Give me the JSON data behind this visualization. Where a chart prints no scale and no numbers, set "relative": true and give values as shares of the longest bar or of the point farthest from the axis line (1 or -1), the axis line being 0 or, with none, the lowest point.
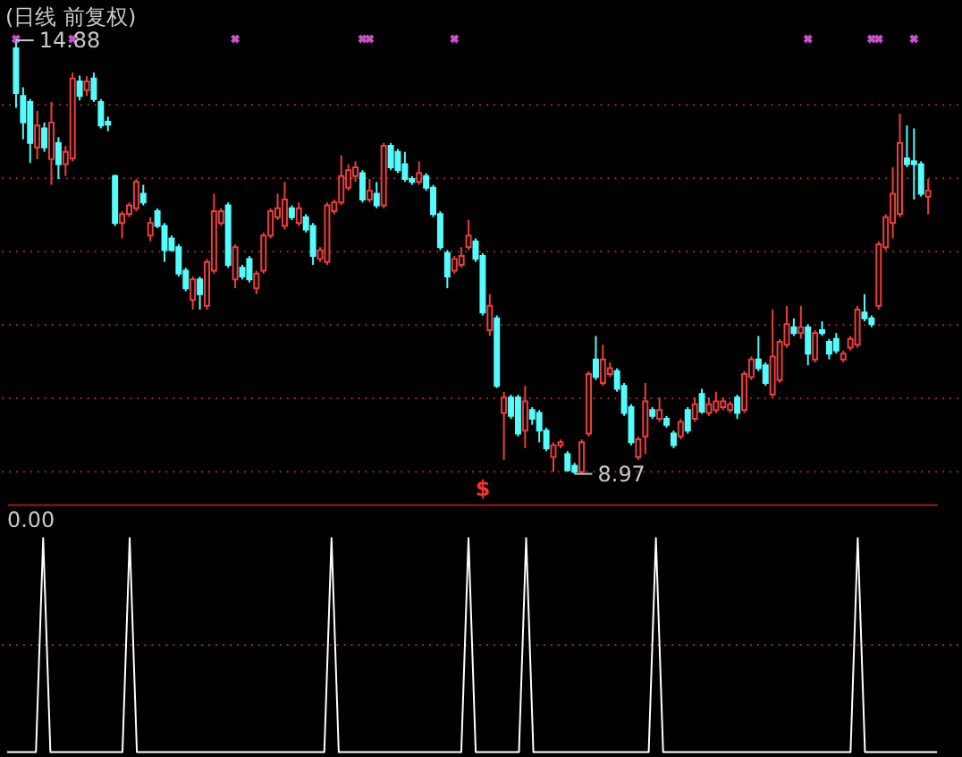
{
  "chart_data": [
    {
      "type": "candlestick",
      "title": "(日线 前复权)",
      "categories": [
        null,
        null,
        null,
        null,
        null,
        null,
        null,
        null,
        null,
        null,
        null,
        null,
        null,
        null,
        null,
        null,
        null,
        null,
        null,
        null,
        null,
        null,
        null,
        null,
        null,
        null,
        null,
        null,
        null,
        null,
        null,
        null,
        null,
        null,
        null,
        null,
        null,
        null,
        null,
        null,
        null,
        null,
        null,
        null,
        null,
        null,
        null,
        null,
        null,
        null,
        null,
        null,
        null,
        null,
        null,
        null,
        null,
        null,
        null,
        null,
        null,
        null,
        null,
        null,
        null,
        null,
        null,
        null,
        null,
        null,
        null,
        null,
        null,
        null,
        null,
        null,
        null,
        null,
        null,
        null,
        null,
        null,
        null,
        null,
        null,
        null,
        null,
        null,
        null,
        null,
        null,
        null,
        null,
        null,
        null,
        null,
        null,
        null,
        null,
        null,
        null,
        null,
        null,
        null,
        null,
        null,
        null,
        null,
        null,
        null,
        null,
        null,
        null,
        null,
        null,
        null,
        null,
        null,
        null,
        null,
        null,
        null,
        null,
        null,
        null,
        null,
        null,
        null,
        null,
        null
      ],
      "ohlc": [
        [
          14.77,
          14.88,
          13.96,
          14.16
        ],
        [
          14.12,
          14.24,
          13.53,
          13.76
        ],
        [
          14.04,
          14.08,
          13.21,
          13.48
        ],
        [
          13.42,
          13.92,
          13.26,
          13.72
        ],
        [
          13.68,
          13.76,
          13.36,
          13.42
        ],
        [
          13.26,
          14.04,
          12.91,
          13.76
        ],
        [
          13.48,
          13.56,
          12.99,
          13.19
        ],
        [
          13.19,
          13.44,
          13.03,
          13.36
        ],
        [
          13.27,
          14.44,
          13.23,
          14.36
        ],
        [
          14.32,
          14.4,
          14.06,
          14.12
        ],
        [
          14.2,
          14.39,
          14.12,
          14.32
        ],
        [
          14.36,
          14.44,
          14.04,
          14.08
        ],
        [
          14.04,
          14.08,
          13.68,
          13.72
        ],
        [
          13.77,
          13.84,
          13.64,
          13.73
        ],
        [
          13.03,
          13.05,
          12.35,
          12.39
        ],
        [
          12.39,
          12.55,
          12.18,
          12.51
        ],
        [
          12.51,
          12.67,
          12.47,
          12.63
        ],
        [
          12.59,
          12.99,
          12.55,
          12.95
        ],
        [
          12.79,
          12.91,
          12.63,
          12.67
        ],
        [
          12.22,
          12.47,
          12.14,
          12.39
        ],
        [
          12.55,
          12.59,
          12.32,
          12.35
        ],
        [
          12.35,
          12.39,
          11.86,
          12.02
        ],
        [
          12.18,
          12.22,
          12.0,
          12.02
        ],
        [
          12.06,
          12.1,
          11.66,
          11.7
        ],
        [
          11.74,
          11.78,
          11.46,
          11.5
        ],
        [
          11.34,
          11.66,
          11.21,
          11.62
        ],
        [
          11.62,
          11.66,
          11.21,
          11.42
        ],
        [
          11.26,
          11.9,
          11.21,
          11.86
        ],
        [
          11.74,
          12.79,
          11.7,
          12.55
        ],
        [
          12.39,
          12.59,
          12.35,
          12.55
        ],
        [
          12.63,
          12.67,
          11.78,
          11.82
        ],
        [
          11.62,
          12.1,
          11.5,
          12.06
        ],
        [
          11.78,
          11.82,
          11.62,
          11.66
        ],
        [
          11.9,
          11.94,
          11.58,
          11.62
        ],
        [
          11.5,
          11.74,
          11.42,
          11.7
        ],
        [
          11.74,
          12.26,
          11.7,
          12.22
        ],
        [
          12.22,
          12.59,
          12.18,
          12.55
        ],
        [
          12.47,
          12.79,
          12.43,
          12.59
        ],
        [
          12.35,
          12.95,
          12.3,
          12.71
        ],
        [
          12.59,
          12.63,
          12.43,
          12.47
        ],
        [
          12.39,
          12.67,
          12.35,
          12.59
        ],
        [
          12.47,
          12.51,
          12.26,
          12.3
        ],
        [
          12.35,
          12.39,
          11.82,
          11.94
        ],
        [
          11.9,
          12.06,
          11.86,
          12.02
        ],
        [
          11.86,
          12.67,
          11.82,
          12.63
        ],
        [
          12.55,
          12.71,
          12.51,
          12.67
        ],
        [
          12.67,
          13.31,
          12.63,
          13.03
        ],
        [
          12.87,
          13.19,
          12.83,
          13.11
        ],
        [
          13.03,
          13.23,
          12.95,
          13.15
        ],
        [
          13.07,
          13.11,
          12.67,
          12.71
        ],
        [
          12.71,
          12.99,
          12.67,
          12.83
        ],
        [
          12.79,
          12.95,
          12.59,
          12.63
        ],
        [
          12.63,
          13.48,
          12.59,
          13.44
        ],
        [
          13.44,
          13.48,
          13.11,
          13.15
        ],
        [
          13.36,
          13.4,
          13.07,
          13.11
        ],
        [
          13.19,
          13.36,
          12.95,
          12.99
        ],
        [
          12.99,
          13.03,
          12.91,
          12.95
        ],
        [
          12.95,
          13.23,
          12.91,
          13.07
        ],
        [
          13.03,
          13.07,
          12.83,
          12.87
        ],
        [
          12.87,
          12.91,
          12.47,
          12.51
        ],
        [
          12.51,
          12.55,
          12.02,
          12.06
        ],
        [
          11.98,
          12.02,
          11.5,
          11.66
        ],
        [
          11.74,
          11.94,
          11.7,
          11.9
        ],
        [
          11.82,
          12.06,
          11.78,
          11.94
        ],
        [
          12.06,
          12.43,
          12.02,
          12.22
        ],
        [
          12.14,
          12.18,
          11.86,
          11.9
        ],
        [
          11.94,
          11.98,
          11.13,
          11.17
        ],
        [
          10.93,
          11.42,
          10.85,
          11.26
        ],
        [
          11.09,
          11.13,
          10.14,
          10.17
        ],
        [
          9.8,
          10.09,
          9.16,
          10.01
        ],
        [
          10.01,
          10.05,
          9.72,
          9.76
        ],
        [
          10.01,
          10.05,
          9.48,
          9.52
        ],
        [
          9.56,
          10.17,
          9.32,
          9.96
        ],
        [
          9.84,
          9.88,
          9.64,
          9.72
        ],
        [
          9.8,
          9.84,
          9.4,
          9.56
        ],
        [
          9.56,
          9.6,
          9.28,
          9.32
        ],
        [
          9.2,
          9.4,
          9.0,
          9.36
        ],
        [
          9.36,
          9.44,
          9.32,
          9.4
        ],
        [
          9.24,
          9.28,
          9.0,
          9.02
        ],
        [
          9.08,
          9.12,
          8.97,
          9.0
        ],
        [
          9.0,
          9.44,
          8.98,
          9.4
        ],
        [
          9.52,
          10.37,
          9.48,
          10.33
        ],
        [
          10.53,
          10.85,
          10.25,
          10.29
        ],
        [
          10.21,
          10.73,
          10.17,
          10.53
        ],
        [
          10.33,
          10.49,
          10.29,
          10.41
        ],
        [
          10.37,
          10.41,
          10.09,
          10.13
        ],
        [
          10.17,
          10.21,
          9.76,
          9.8
        ],
        [
          9.88,
          9.92,
          9.36,
          9.4
        ],
        [
          9.2,
          9.48,
          9.16,
          9.44
        ],
        [
          9.48,
          10.21,
          9.24,
          9.96
        ],
        [
          9.84,
          9.88,
          9.72,
          9.76
        ],
        [
          9.72,
          10.01,
          9.68,
          9.84
        ],
        [
          9.72,
          9.76,
          9.6,
          9.64
        ],
        [
          9.52,
          9.56,
          9.32,
          9.36
        ],
        [
          9.48,
          9.72,
          9.44,
          9.68
        ],
        [
          9.84,
          9.88,
          9.52,
          9.56
        ],
        [
          9.72,
          10.01,
          9.68,
          9.92
        ],
        [
          10.06,
          10.13,
          9.79,
          9.82
        ],
        [
          9.8,
          10.01,
          9.76,
          9.92
        ],
        [
          9.84,
          10.09,
          9.8,
          9.96
        ],
        [
          9.88,
          10.01,
          9.84,
          9.96
        ],
        [
          9.84,
          9.96,
          9.8,
          9.92
        ],
        [
          10.01,
          10.05,
          9.72,
          9.8
        ],
        [
          9.84,
          10.37,
          9.8,
          10.33
        ],
        [
          10.29,
          10.57,
          10.25,
          10.53
        ],
        [
          10.53,
          10.85,
          10.37,
          10.41
        ],
        [
          10.45,
          10.49,
          10.17,
          10.21
        ],
        [
          10.05,
          11.21,
          10.01,
          10.57
        ],
        [
          10.25,
          10.81,
          10.21,
          10.77
        ],
        [
          10.73,
          11.26,
          10.69,
          11.01
        ],
        [
          10.97,
          11.09,
          10.85,
          10.89
        ],
        [
          10.89,
          11.26,
          10.81,
          10.97
        ],
        [
          10.97,
          11.01,
          10.45,
          10.61
        ],
        [
          10.53,
          10.93,
          10.49,
          10.89
        ],
        [
          10.93,
          11.05,
          10.85,
          10.89
        ],
        [
          10.77,
          10.81,
          10.53,
          10.61
        ],
        [
          10.81,
          10.89,
          10.61,
          10.65
        ],
        [
          10.53,
          10.65,
          10.49,
          10.61
        ],
        [
          10.69,
          10.85,
          10.65,
          10.81
        ],
        [
          10.73,
          11.26,
          10.69,
          11.21
        ],
        [
          11.17,
          11.42,
          11.05,
          11.09
        ],
        [
          11.09,
          11.13,
          10.97,
          11.01
        ],
        [
          11.26,
          12.14,
          11.21,
          12.1
        ],
        [
          12.06,
          12.51,
          12.02,
          12.47
        ],
        [
          12.39,
          13.15,
          12.18,
          12.79
        ],
        [
          12.51,
          13.88,
          12.47,
          13.48
        ],
        [
          13.27,
          13.72,
          13.15,
          13.19
        ],
        [
          13.23,
          13.68,
          12.71,
          13.19
        ],
        [
          13.19,
          13.23,
          12.75,
          12.79
        ],
        [
          12.75,
          12.99,
          12.51,
          12.83
        ]
      ],
      "colors": [
        "#54fcfc",
        "#54fcfc",
        "#54fcfc",
        "#f03c3c",
        "#54fcfc",
        "#f03c3c",
        "#54fcfc",
        "#f03c3c",
        "#f03c3c",
        "#54fcfc",
        "#f03c3c",
        "#54fcfc",
        "#54fcfc",
        "#54fcfc",
        "#54fcfc",
        "#f03c3c",
        "#f03c3c",
        "#f03c3c",
        "#54fcfc",
        "#f03c3c",
        "#54fcfc",
        "#54fcfc",
        "#54fcfc",
        "#54fcfc",
        "#54fcfc",
        "#f03c3c",
        "#54fcfc",
        "#f03c3c",
        "#f03c3c",
        "#f03c3c",
        "#54fcfc",
        "#f03c3c",
        "#54fcfc",
        "#54fcfc",
        "#f03c3c",
        "#f03c3c",
        "#f03c3c",
        "#f03c3c",
        "#f03c3c",
        "#54fcfc",
        "#f03c3c",
        "#54fcfc",
        "#54fcfc",
        "#f03c3c",
        "#f03c3c",
        "#f03c3c",
        "#f03c3c",
        "#f03c3c",
        "#f03c3c",
        "#54fcfc",
        "#f03c3c",
        "#54fcfc",
        "#f03c3c",
        "#54fcfc",
        "#54fcfc",
        "#54fcfc",
        "#54fcfc",
        "#f03c3c",
        "#54fcfc",
        "#54fcfc",
        "#54fcfc",
        "#54fcfc",
        "#f03c3c",
        "#f03c3c",
        "#f03c3c",
        "#54fcfc",
        "#54fcfc",
        "#f03c3c",
        "#54fcfc",
        "#f03c3c",
        "#54fcfc",
        "#54fcfc",
        "#f03c3c",
        "#54fcfc",
        "#54fcfc",
        "#54fcfc",
        "#f03c3c",
        "#f03c3c",
        "#54fcfc",
        "#54fcfc",
        "#f03c3c",
        "#f03c3c",
        "#54fcfc",
        "#f03c3c",
        "#f03c3c",
        "#54fcfc",
        "#54fcfc",
        "#54fcfc",
        "#f03c3c",
        "#f03c3c",
        "#54fcfc",
        "#f03c3c",
        "#54fcfc",
        "#54fcfc",
        "#f03c3c",
        "#54fcfc",
        "#f03c3c",
        "#54fcfc",
        "#f03c3c",
        "#f03c3c",
        "#f03c3c",
        "#f03c3c",
        "#54fcfc",
        "#f03c3c",
        "#f03c3c",
        "#54fcfc",
        "#54fcfc",
        "#f03c3c",
        "#f03c3c",
        "#f03c3c",
        "#54fcfc",
        "#f03c3c",
        "#54fcfc",
        "#f03c3c",
        "#54fcfc",
        "#54fcfc",
        "#54fcfc",
        "#f03c3c",
        "#f03c3c",
        "#f03c3c",
        "#54fcfc",
        "#54fcfc",
        "#f03c3c",
        "#f03c3c",
        "#f03c3c",
        "#f03c3c",
        "#54fcfc",
        "#54fcfc",
        "#54fcfc",
        "#f03c3c"
      ],
      "series": [
        {
          "type": "scatter",
          "marker": "cross",
          "color": "#c850c8",
          "values": [
            14.9,
            null,
            null,
            null,
            null,
            null,
            null,
            null,
            14.9,
            null,
            null,
            null,
            null,
            null,
            null,
            null,
            null,
            null,
            null,
            null,
            null,
            null,
            null,
            null,
            null,
            null,
            null,
            null,
            null,
            null,
            null,
            14.9,
            null,
            null,
            null,
            null,
            null,
            null,
            null,
            null,
            null,
            null,
            null,
            null,
            null,
            null,
            null,
            null,
            null,
            14.9,
            14.9,
            null,
            null,
            null,
            null,
            null,
            null,
            null,
            null,
            null,
            null,
            null,
            14.9,
            null,
            null,
            null,
            null,
            null,
            null,
            null,
            null,
            null,
            null,
            null,
            null,
            null,
            null,
            null,
            null,
            null,
            null,
            null,
            null,
            null,
            null,
            null,
            null,
            null,
            null,
            null,
            null,
            null,
            null,
            null,
            null,
            null,
            null,
            null,
            null,
            null,
            null,
            null,
            null,
            null,
            null,
            null,
            null,
            null,
            null,
            null,
            null,
            null,
            14.9,
            null,
            null,
            null,
            null,
            null,
            null,
            null,
            null,
            14.9,
            14.9,
            null,
            null,
            null,
            null,
            14.9,
            null,
            null
          ]
        }
      ],
      "ref_lines": [
        {
          "axis": "y",
          "value": 14,
          "color": "#a02828",
          "line_style": "dotted"
        },
        {
          "axis": "y",
          "value": 13,
          "color": "#a02828",
          "line_style": "dotted"
        },
        {
          "axis": "y",
          "value": 12,
          "color": "#a02828",
          "line_style": "dotted"
        },
        {
          "axis": "y",
          "value": 11,
          "color": "#a02828",
          "line_style": "dotted"
        },
        {
          "axis": "y",
          "value": 10,
          "color": "#a02828",
          "line_style": "dotted"
        },
        {
          "axis": "y",
          "value": 9,
          "color": "#a02828",
          "line_style": "dotted"
        }
      ],
      "annotations": [
        {
          "text": "14.88",
          "y": 14.88
        },
        "8.97",
        "$"
      ],
      "tick_labels": false
    },
    {
      "type": "line",
      "relative": true,
      "color": "#ffffff",
      "categories": [
        null,
        null,
        null,
        null,
        null,
        null,
        null,
        null,
        null,
        null,
        null,
        null,
        null,
        null,
        null,
        null,
        null,
        null,
        null,
        null,
        null,
        null,
        null,
        null,
        null,
        null,
        null,
        null,
        null,
        null,
        null,
        null,
        null,
        null,
        null,
        null,
        null,
        null,
        null,
        null,
        null,
        null,
        null,
        null,
        null,
        null,
        null,
        null,
        null,
        null,
        null,
        null,
        null,
        null,
        null,
        null,
        null,
        null,
        null,
        null,
        null,
        null,
        null,
        null,
        null,
        null,
        null,
        null,
        null,
        null,
        null,
        null,
        null,
        null,
        null,
        null,
        null,
        null,
        null,
        null,
        null,
        null,
        null,
        null,
        null,
        null,
        null,
        null,
        null,
        null,
        null,
        null,
        null,
        null,
        null,
        null,
        null,
        null,
        null,
        null,
        null,
        null,
        null,
        null,
        null,
        null,
        null,
        null,
        null,
        null,
        null,
        null,
        null,
        null,
        null,
        null,
        null,
        null,
        null,
        null,
        null,
        null,
        null,
        null,
        null,
        null,
        null,
        null,
        null,
        null
      ],
      "values": [
        0,
        0,
        0,
        0,
        0,
        1,
        0,
        0,
        0,
        0,
        0,
        0,
        0,
        0,
        0,
        0,
        0,
        1,
        0,
        0,
        0,
        0,
        0,
        0,
        0,
        0,
        0,
        0,
        0,
        0,
        0,
        0,
        0,
        0,
        0,
        0,
        0,
        0,
        0,
        0,
        0,
        0,
        0,
        0,
        0,
        1,
        0,
        0,
        0,
        0,
        0,
        0,
        0,
        0,
        0,
        0,
        0,
        0,
        0,
        0,
        0,
        0,
        0,
        0,
        1,
        0,
        0,
        0,
        0,
        0,
        0,
        0,
        1,
        0,
        0,
        0,
        0,
        0,
        0,
        0,
        0,
        0,
        0,
        0,
        0,
        0,
        0,
        0,
        0,
        0,
        1,
        0,
        0,
        0,
        0,
        0,
        0,
        0,
        0,
        0,
        0,
        0,
        0,
        0,
        0,
        0,
        0,
        0,
        0,
        0,
        0,
        0,
        0,
        0,
        0,
        0,
        0,
        0,
        1,
        0,
        0,
        0,
        0,
        0,
        0,
        0,
        0,
        0,
        0,
        0
      ],
      "ref_lines": [
        {
          "axis": "y",
          "value": 0.5,
          "color": "#a02828",
          "line_style": "dotted"
        }
      ],
      "annotations": [
        "0.00"
      ]
    }
  ]
}
